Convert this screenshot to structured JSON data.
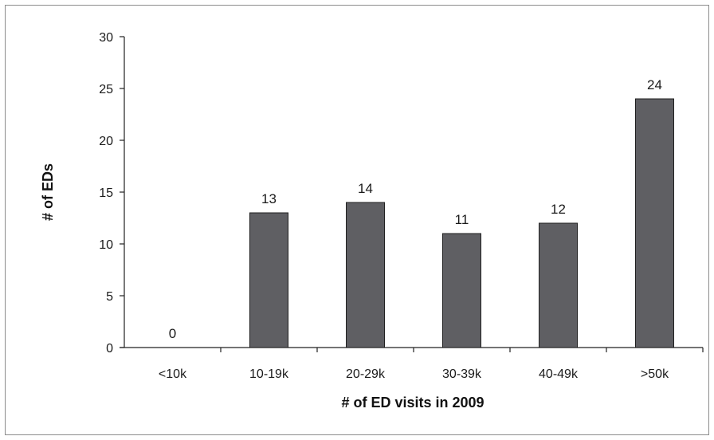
{
  "chart_data": {
    "type": "bar",
    "title": "",
    "xlabel": "# of ED visits in 2009",
    "ylabel": "# of EDs",
    "categories": [
      "<10k",
      "10-19k",
      "20-29k",
      "30-39k",
      "40-49k",
      ">50k"
    ],
    "values": [
      0,
      13,
      14,
      11,
      12,
      24
    ],
    "data_labels": [
      "0",
      "13",
      "14",
      "11",
      "12",
      "24"
    ],
    "ylim": [
      0,
      30
    ],
    "yticks": [
      0,
      5,
      10,
      15,
      20,
      25,
      30
    ],
    "grid": false,
    "legend": "none",
    "bar_color": "#5f5f63",
    "bar_edge_color": "#1f1f1f"
  }
}
